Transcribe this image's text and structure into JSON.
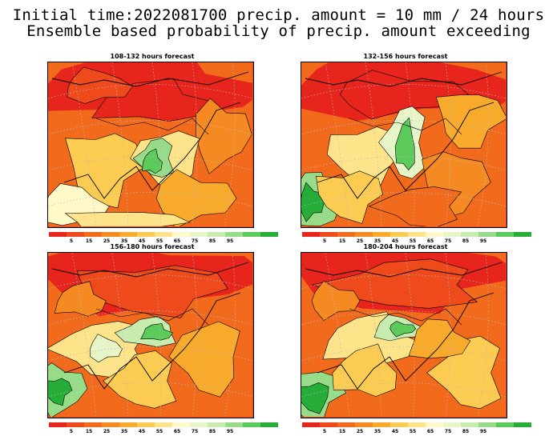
{
  "title": {
    "line1": "Initial time:2022081700 precip. amount = 10 mm / 24 hours",
    "line2": "Ensemble based probability of precip. amount exceeding"
  },
  "panels": [
    {
      "title": "108-132 hours forecast",
      "variant": 0
    },
    {
      "title": "132-156 hours forecast",
      "variant": 1
    },
    {
      "title": "156-180 hours forecast",
      "variant": 2
    },
    {
      "title": "180-204 hours forecast",
      "variant": 3
    }
  ],
  "colorbar": {
    "labels": [
      "5",
      "15",
      "25",
      "35",
      "45",
      "55",
      "65",
      "75",
      "85",
      "95"
    ],
    "colors": [
      "#e8251c",
      "#ee4a1c",
      "#f26a1c",
      "#f58a22",
      "#f8aa2c",
      "#fbcb52",
      "#fde48a",
      "#fff8c8",
      "#e8f5c8",
      "#c8ebb0",
      "#98db88",
      "#5ccb5c",
      "#26ad38"
    ]
  }
}
